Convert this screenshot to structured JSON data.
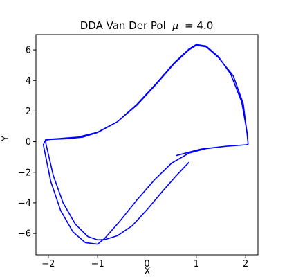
{
  "chart_data": {
    "type": "line",
    "title": "DDA Van Der Pol",
    "title_param_symbol": "μ",
    "title_param_value": "= 4.0",
    "xlabel": "X",
    "ylabel": "Y",
    "xlim": [
      -2.25,
      2.25
    ],
    "ylim": [
      -7.4,
      7.0
    ],
    "xticks": [
      -2,
      -1,
      0,
      1,
      2
    ],
    "yticks": [
      -6,
      -4,
      -2,
      0,
      2,
      4,
      6
    ],
    "grid": false,
    "legend": "none",
    "line_color": "#0000ff",
    "series": [
      {
        "x": [
          0.85,
          0.6,
          0.3,
          0.0,
          -0.3,
          -0.6,
          -0.85,
          -1.0,
          -1.2,
          -1.45,
          -1.7,
          -1.9,
          -2.0,
          -2.05,
          -2.05,
          -1.95,
          -1.6,
          -1.3,
          -1.0,
          -0.6,
          -0.2,
          0.2,
          0.55,
          0.85,
          1.0,
          1.2,
          1.45,
          1.75,
          1.95,
          2.03,
          2.05,
          2.02,
          1.6,
          1.2,
          0.85,
          0.5,
          0.15,
          -0.2,
          -0.55,
          -0.85,
          -1.0,
          -1.25,
          -1.5,
          -1.75,
          -1.95,
          -2.05,
          -2.1,
          -2.05,
          -1.8,
          -1.4,
          -1.0,
          -0.6,
          -0.2,
          0.2,
          0.55,
          0.85,
          1.0,
          1.2,
          1.45,
          1.7,
          1.92,
          2.03,
          2.05,
          2.02,
          1.6,
          1.1,
          0.6
        ],
        "y": [
          -1.35,
          -2.2,
          -3.3,
          -4.45,
          -5.5,
          -6.15,
          -6.4,
          -6.42,
          -6.2,
          -5.4,
          -4.0,
          -2.2,
          -0.8,
          -0.1,
          0.1,
          0.15,
          0.2,
          0.3,
          0.6,
          1.3,
          2.4,
          3.8,
          5.1,
          6.0,
          6.3,
          6.2,
          5.5,
          4.3,
          2.5,
          0.5,
          -0.15,
          -0.2,
          -0.3,
          -0.45,
          -0.75,
          -1.4,
          -2.5,
          -3.8,
          -5.2,
          -6.3,
          -6.7,
          -6.6,
          -5.9,
          -4.5,
          -2.6,
          -1.0,
          -0.2,
          0.15,
          0.2,
          0.3,
          0.62,
          1.3,
          2.45,
          3.85,
          5.15,
          6.05,
          6.35,
          6.25,
          5.55,
          4.4,
          2.6,
          0.6,
          -0.15,
          -0.2,
          -0.3,
          -0.48,
          -0.9
        ]
      }
    ]
  }
}
